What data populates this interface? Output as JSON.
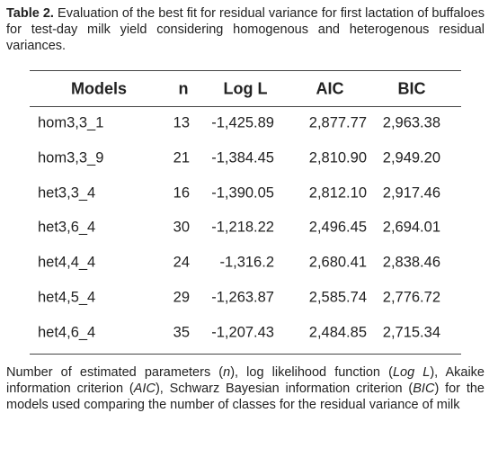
{
  "caption": {
    "label": "Table 2.",
    "text": "Evaluation of the best fit for residual variance for first lactation of buffaloes for test-day milk yield considering homogenous and heterogenous residual variances."
  },
  "table": {
    "header": [
      "Models",
      "n",
      "Log L",
      "AIC",
      "BIC"
    ],
    "rows": [
      [
        "hom3,3_1",
        "13",
        "-1,425.89",
        "2,877.77",
        "2,963.38"
      ],
      [
        "hom3,3_9",
        "21",
        "-1,384.45",
        "2,810.90",
        "2,949.20"
      ],
      [
        "het3,3_4",
        "16",
        "-1,390.05",
        "2,812.10",
        "2,917.46"
      ],
      [
        "het3,6_4",
        "30",
        "-1,218.22",
        "2,496.45",
        "2,694.01"
      ],
      [
        "het4,4_4",
        "24",
        "-1,316.2",
        "2,680.41",
        "2,838.46"
      ],
      [
        "het4,5_4",
        "29",
        "-1,263.87",
        "2,585.74",
        "2,776.72"
      ],
      [
        "het4,6_4",
        "35",
        "-1,207.43",
        "2,484.85",
        "2,715.34"
      ]
    ]
  },
  "footnote": [
    {
      "text": "Number of estimated parameters (",
      "italic": false
    },
    {
      "text": "n",
      "italic": true
    },
    {
      "text": "), log likelihood function (",
      "italic": false
    },
    {
      "text": "Log L",
      "italic": true
    },
    {
      "text": "), Akaike information criterion (",
      "italic": false
    },
    {
      "text": "AIC",
      "italic": true
    },
    {
      "text": "), Schwarz Bayesian information criterion (",
      "italic": false
    },
    {
      "text": "BIC",
      "italic": true
    },
    {
      "text": ") for the models used comparing the number of classes for the residual variance of milk",
      "italic": false
    }
  ]
}
